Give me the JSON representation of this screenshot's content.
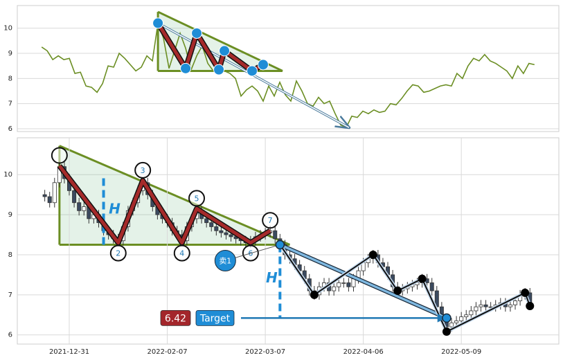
{
  "chart_data": [
    {
      "type": "line",
      "values": [
        9.25,
        9.1,
        8.75,
        8.9,
        8.75,
        8.8,
        8.2,
        8.25,
        7.7,
        7.65,
        7.45,
        7.8,
        8.5,
        8.45,
        9.0,
        8.8,
        8.55,
        8.3,
        8.45,
        8.9,
        8.7,
        10.2,
        9.6,
        8.4,
        9.1,
        9.8,
        9.2,
        8.35,
        8.9,
        9.3,
        8.6,
        8.3,
        8.55,
        8.3,
        8.2,
        8.0,
        7.3,
        7.55,
        7.7,
        7.5,
        7.1,
        7.7,
        7.3,
        7.85,
        7.35,
        7.1,
        7.9,
        7.5,
        7.0,
        6.9,
        7.25,
        7.0,
        7.1,
        6.6,
        6.15,
        6.05,
        6.5,
        6.45,
        6.7,
        6.6,
        6.75,
        6.65,
        6.7,
        7.0,
        6.95,
        7.2,
        7.5,
        7.75,
        7.7,
        7.45,
        7.5,
        7.6,
        7.7,
        7.75,
        7.7,
        8.2,
        8.0,
        8.5,
        8.8,
        8.7,
        8.95,
        8.7,
        8.6,
        8.45,
        8.3,
        8.0,
        8.5,
        8.2,
        8.6,
        8.55
      ],
      "color": "#6b8e23",
      "xlim": [
        -4.4,
        93.4
      ],
      "ylim": [
        5.89,
        10.9
      ],
      "yticks": [
        6,
        7,
        8,
        9,
        10
      ],
      "grid": true,
      "triangle": {
        "x": [
          21,
          43.5
        ],
        "top": [
          10.65,
          8.3
        ],
        "base": 8.3,
        "color": "#6b8e23"
      },
      "pattern": {
        "x": [
          21,
          26,
          28,
          32,
          33,
          38,
          40
        ],
        "values": [
          10.2,
          8.4,
          9.8,
          8.35,
          9.1,
          8.3,
          8.55
        ],
        "color": "#a52a2a",
        "marker_color": "#1f8dd6"
      },
      "projection": {
        "x": [
          21,
          55.5
        ],
        "values": [
          10.2,
          6.05
        ]
      }
    },
    {
      "type": "candlestick",
      "categories": [
        null,
        null,
        null,
        null,
        null,
        "2021-12-31",
        null,
        null,
        null,
        null,
        null,
        null,
        null,
        null,
        null,
        null,
        null,
        null,
        null,
        null,
        null,
        null,
        null,
        null,
        null,
        "2022-02-07",
        null,
        null,
        null,
        null,
        null,
        null,
        null,
        null,
        null,
        null,
        null,
        null,
        null,
        null,
        null,
        null,
        null,
        null,
        null,
        "2022-03-07",
        null,
        null,
        null,
        null,
        null,
        null,
        null,
        null,
        null,
        null,
        null,
        null,
        null,
        null,
        null,
        null,
        null,
        null,
        null,
        "2022-04-06",
        null,
        null,
        null,
        null,
        null,
        null,
        null,
        null,
        null,
        null,
        null,
        null,
        null,
        null,
        null,
        null,
        null,
        null,
        null,
        "2022-05-09",
        null,
        null,
        null,
        null,
        null,
        null,
        null,
        null,
        null,
        null,
        null,
        null,
        null,
        null
      ],
      "open": [
        9.5,
        9.45,
        9.3,
        9.8,
        10.2,
        9.9,
        9.6,
        9.3,
        9.1,
        9.2,
        8.9,
        9.0,
        8.8,
        8.6,
        8.5,
        8.4,
        8.35,
        8.7,
        9.1,
        9.3,
        9.6,
        9.8,
        9.5,
        9.2,
        9.0,
        8.9,
        8.8,
        8.6,
        8.5,
        8.35,
        8.7,
        8.9,
        9.1,
        8.9,
        8.8,
        8.7,
        8.6,
        8.55,
        8.5,
        8.45,
        8.4,
        8.35,
        8.3,
        8.35,
        8.45,
        8.5,
        8.55,
        8.6,
        8.4,
        8.25,
        8.0,
        7.9,
        7.75,
        7.6,
        7.4,
        7.1,
        7.0,
        7.2,
        7.3,
        7.1,
        7.2,
        7.3,
        7.3,
        7.2,
        7.4,
        7.6,
        7.8,
        7.9,
        8.0,
        7.8,
        7.7,
        7.5,
        7.2,
        7.1,
        7.15,
        7.2,
        7.25,
        7.3,
        7.4,
        7.3,
        7.1,
        6.7,
        6.4,
        6.2,
        6.3,
        6.35,
        6.45,
        6.5,
        6.6,
        6.7,
        6.75,
        6.7,
        6.7,
        6.75,
        6.8,
        6.7,
        6.75,
        6.85,
        7.0,
        7.05
      ],
      "high": [
        9.62,
        9.57,
        9.92,
        10.32,
        10.32,
        10.02,
        9.72,
        9.42,
        9.32,
        9.32,
        9.12,
        9.12,
        8.92,
        8.72,
        8.62,
        8.52,
        8.82,
        9.22,
        9.42,
        9.72,
        9.92,
        9.92,
        9.62,
        9.32,
        9.12,
        9.02,
        8.92,
        8.72,
        8.62,
        8.82,
        9.02,
        9.22,
        9.22,
        9.02,
        8.92,
        8.82,
        8.72,
        8.67,
        8.62,
        8.57,
        8.52,
        8.47,
        8.47,
        8.57,
        8.62,
        8.67,
        8.72,
        8.72,
        8.52,
        8.37,
        8.12,
        8.02,
        7.87,
        7.72,
        7.52,
        7.22,
        7.32,
        7.42,
        7.42,
        7.32,
        7.42,
        7.42,
        7.42,
        7.52,
        7.72,
        7.92,
        8.02,
        8.12,
        8.12,
        7.92,
        7.82,
        7.62,
        7.32,
        7.27,
        7.32,
        7.37,
        7.42,
        7.52,
        7.52,
        7.42,
        7.22,
        6.82,
        6.52,
        6.42,
        6.47,
        6.57,
        6.62,
        6.72,
        6.82,
        6.87,
        6.87,
        6.82,
        6.87,
        6.92,
        6.92,
        6.87,
        6.97,
        7.12,
        7.17,
        7.17
      ],
      "low": [
        9.33,
        9.18,
        9.18,
        9.68,
        9.78,
        9.48,
        9.18,
        8.98,
        8.98,
        8.78,
        8.78,
        8.68,
        8.48,
        8.38,
        8.28,
        8.23,
        8.23,
        8.58,
        8.98,
        9.18,
        9.48,
        9.38,
        9.08,
        8.88,
        8.78,
        8.68,
        8.48,
        8.38,
        8.23,
        8.23,
        8.58,
        8.78,
        8.78,
        8.68,
        8.58,
        8.48,
        8.43,
        8.38,
        8.33,
        8.28,
        8.23,
        8.18,
        8.18,
        8.23,
        8.33,
        8.38,
        8.43,
        8.28,
        8.13,
        7.88,
        7.78,
        7.63,
        7.48,
        7.28,
        6.98,
        6.88,
        6.88,
        7.08,
        6.98,
        6.98,
        7.08,
        7.18,
        7.08,
        7.08,
        7.28,
        7.48,
        7.68,
        7.78,
        7.68,
        7.58,
        7.38,
        7.08,
        6.98,
        6.98,
        7.03,
        7.08,
        7.13,
        7.18,
        7.18,
        6.98,
        6.58,
        6.28,
        6.08,
        6.08,
        6.18,
        6.23,
        6.33,
        6.38,
        6.48,
        6.58,
        6.58,
        6.58,
        6.58,
        6.63,
        6.58,
        6.58,
        6.63,
        6.73,
        6.88,
        6.63
      ],
      "close": [
        9.45,
        9.3,
        9.8,
        10.2,
        9.9,
        9.6,
        9.3,
        9.1,
        9.2,
        8.9,
        9.0,
        8.8,
        8.6,
        8.5,
        8.4,
        8.35,
        8.7,
        9.1,
        9.3,
        9.6,
        9.8,
        9.5,
        9.2,
        9.0,
        8.9,
        8.8,
        8.6,
        8.5,
        8.35,
        8.7,
        8.9,
        9.1,
        8.9,
        8.8,
        8.7,
        8.6,
        8.55,
        8.5,
        8.45,
        8.4,
        8.35,
        8.3,
        8.35,
        8.45,
        8.5,
        8.55,
        8.6,
        8.4,
        8.25,
        8.0,
        7.9,
        7.75,
        7.6,
        7.4,
        7.1,
        7.0,
        7.2,
        7.3,
        7.1,
        7.2,
        7.3,
        7.3,
        7.2,
        7.4,
        7.6,
        7.8,
        7.9,
        8.0,
        7.8,
        7.7,
        7.5,
        7.2,
        7.1,
        7.15,
        7.2,
        7.25,
        7.3,
        7.4,
        7.3,
        7.1,
        6.7,
        6.4,
        6.2,
        6.3,
        6.35,
        6.45,
        6.5,
        6.6,
        6.7,
        6.75,
        6.7,
        6.7,
        6.75,
        6.8,
        6.7,
        6.75,
        6.85,
        7.0,
        7.05,
        6.75
      ],
      "up_color": "#ffffff",
      "down_color": "#3b4a5f",
      "xlim": [
        -5.6,
        104.9
      ],
      "ylim": [
        5.77,
        10.92
      ],
      "yticks": [
        6,
        7,
        8,
        9,
        10
      ],
      "grid": true,
      "triangle": {
        "x": [
          3,
          50
        ],
        "top": [
          10.72,
          8.25
        ],
        "base": 8.25,
        "color": "#6b8e23"
      },
      "pattern": {
        "x": [
          3,
          15,
          20,
          28,
          31,
          42,
          46
        ],
        "values": [
          10.22,
          8.3,
          9.85,
          8.3,
          9.15,
          8.3,
          8.6
        ],
        "labels": [
          null,
          "2",
          "3",
          "4",
          "5",
          "6",
          "7"
        ],
        "color": "#a52a2a"
      },
      "height_marks": [
        {
          "x": 12,
          "from": 8.25,
          "to": 10.0,
          "label": "H"
        },
        {
          "x": 48,
          "from": 8.25,
          "to": 6.42,
          "label": "H"
        }
      ],
      "sell": {
        "x": 48,
        "value": 8.25,
        "label": "卖1"
      },
      "projection": {
        "x": [
          48,
          82
        ],
        "values": [
          8.25,
          6.42
        ]
      },
      "zigzag": {
        "x": [
          48,
          55,
          67,
          72,
          77,
          82,
          98,
          99
        ],
        "values": [
          8.25,
          7.0,
          8.0,
          7.1,
          7.4,
          6.08,
          7.05,
          6.72
        ]
      },
      "target": {
        "x": 82,
        "value": 6.42,
        "value_label": "6.42",
        "label": "Target"
      }
    }
  ]
}
